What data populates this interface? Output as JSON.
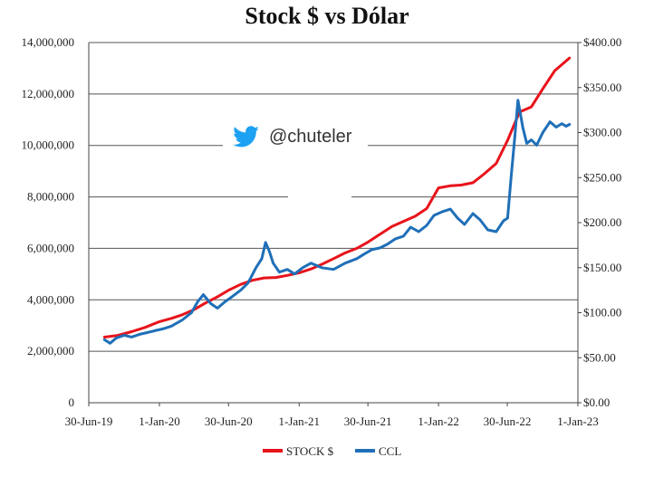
{
  "watermark": {
    "icon": "twitter-bird-icon",
    "handle": "@chuteler",
    "color": "#1da1f2"
  },
  "chart_data": {
    "type": "line",
    "title": "Stock $ vs Dólar",
    "xlabel": "",
    "ylabel_left": "",
    "ylabel_right": "",
    "x_range": [
      "2019-06-30",
      "2023-01-01"
    ],
    "y_left_range": [
      0,
      14000000
    ],
    "y_right_range": [
      0,
      400
    ],
    "x_ticks": [
      {
        "date": "2019-06-30",
        "label": "30-Jun-19"
      },
      {
        "date": "2020-01-01",
        "label": "1-Jan-20"
      },
      {
        "date": "2020-06-30",
        "label": "30-Jun-20"
      },
      {
        "date": "2021-01-01",
        "label": "1-Jan-21"
      },
      {
        "date": "2021-06-30",
        "label": "30-Jun-21"
      },
      {
        "date": "2022-01-01",
        "label": "1-Jan-22"
      },
      {
        "date": "2022-06-30",
        "label": "30-Jun-22"
      },
      {
        "date": "2023-01-01",
        "label": "1-Jan-23"
      }
    ],
    "y_left_ticks": [
      {
        "value": 0,
        "label": "0"
      },
      {
        "value": 2000000,
        "label": "2,000,000"
      },
      {
        "value": 4000000,
        "label": "4,000,000"
      },
      {
        "value": 6000000,
        "label": "6,000,000"
      },
      {
        "value": 8000000,
        "label": "8,000,000"
      },
      {
        "value": 10000000,
        "label": "10,000,000"
      },
      {
        "value": 12000000,
        "label": "12,000,000"
      },
      {
        "value": 14000000,
        "label": "14,000,000"
      }
    ],
    "y_right_ticks": [
      {
        "value": 0,
        "label": "$0.00"
      },
      {
        "value": 50,
        "label": "$50.00"
      },
      {
        "value": 100,
        "label": "$100.00"
      },
      {
        "value": 150,
        "label": "$150.00"
      },
      {
        "value": 200,
        "label": "$200.00"
      },
      {
        "value": 250,
        "label": "$250.00"
      },
      {
        "value": 300,
        "label": "$300.00"
      },
      {
        "value": 350,
        "label": "$350.00"
      },
      {
        "value": 400,
        "label": "$400.00"
      }
    ],
    "grid": "horizontal",
    "legend": "bottom",
    "series": [
      {
        "name": "STOCK $",
        "color": "#e8131b",
        "axis": "left",
        "points": [
          [
            "2019-08-10",
            2550000
          ],
          [
            "2019-09-15",
            2620000
          ],
          [
            "2019-10-20",
            2760000
          ],
          [
            "2019-11-25",
            2930000
          ],
          [
            "2020-01-01",
            3150000
          ],
          [
            "2020-02-01",
            3280000
          ],
          [
            "2020-03-01",
            3420000
          ],
          [
            "2020-04-01",
            3620000
          ],
          [
            "2020-05-01",
            3880000
          ],
          [
            "2020-06-01",
            4120000
          ],
          [
            "2020-07-01",
            4380000
          ],
          [
            "2020-08-01",
            4600000
          ],
          [
            "2020-09-01",
            4760000
          ],
          [
            "2020-10-01",
            4850000
          ],
          [
            "2020-11-01",
            4870000
          ],
          [
            "2020-12-01",
            4950000
          ],
          [
            "2021-01-01",
            5050000
          ],
          [
            "2021-02-01",
            5200000
          ],
          [
            "2021-03-01",
            5380000
          ],
          [
            "2021-04-01",
            5600000
          ],
          [
            "2021-05-01",
            5820000
          ],
          [
            "2021-06-01",
            6000000
          ],
          [
            "2021-07-01",
            6250000
          ],
          [
            "2021-08-01",
            6550000
          ],
          [
            "2021-09-01",
            6850000
          ],
          [
            "2021-10-01",
            7050000
          ],
          [
            "2021-11-01",
            7250000
          ],
          [
            "2021-12-01",
            7550000
          ],
          [
            "2022-01-01",
            8350000
          ],
          [
            "2022-02-01",
            8430000
          ],
          [
            "2022-03-01",
            8460000
          ],
          [
            "2022-04-01",
            8550000
          ],
          [
            "2022-05-01",
            8900000
          ],
          [
            "2022-06-01",
            9300000
          ],
          [
            "2022-07-01",
            10200000
          ],
          [
            "2022-08-01",
            11300000
          ],
          [
            "2022-09-01",
            11500000
          ],
          [
            "2022-10-01",
            12200000
          ],
          [
            "2022-11-01",
            12900000
          ],
          [
            "2022-12-10",
            13400000
          ]
        ]
      },
      {
        "name": "CCL",
        "color": "#1f6fb8",
        "axis": "right",
        "points": [
          [
            "2019-08-10",
            70
          ],
          [
            "2019-08-25",
            66
          ],
          [
            "2019-09-10",
            72
          ],
          [
            "2019-10-01",
            75
          ],
          [
            "2019-10-20",
            73
          ],
          [
            "2019-11-10",
            76
          ],
          [
            "2019-12-01",
            78
          ],
          [
            "2019-12-20",
            80
          ],
          [
            "2020-01-10",
            82
          ],
          [
            "2020-02-01",
            85
          ],
          [
            "2020-03-01",
            92
          ],
          [
            "2020-03-25",
            100
          ],
          [
            "2020-04-10",
            112
          ],
          [
            "2020-04-25",
            120
          ],
          [
            "2020-05-15",
            110
          ],
          [
            "2020-06-01",
            105
          ],
          [
            "2020-06-20",
            112
          ],
          [
            "2020-07-10",
            118
          ],
          [
            "2020-08-01",
            125
          ],
          [
            "2020-08-20",
            133
          ],
          [
            "2020-09-10",
            150
          ],
          [
            "2020-09-25",
            160
          ],
          [
            "2020-10-05",
            178
          ],
          [
            "2020-10-15",
            168
          ],
          [
            "2020-10-25",
            155
          ],
          [
            "2020-11-10",
            145
          ],
          [
            "2020-12-01",
            148
          ],
          [
            "2020-12-20",
            143
          ],
          [
            "2021-01-10",
            150
          ],
          [
            "2021-02-01",
            155
          ],
          [
            "2021-03-01",
            150
          ],
          [
            "2021-04-01",
            148
          ],
          [
            "2021-05-01",
            155
          ],
          [
            "2021-06-01",
            160
          ],
          [
            "2021-06-20",
            165
          ],
          [
            "2021-07-10",
            170
          ],
          [
            "2021-08-01",
            172
          ],
          [
            "2021-08-20",
            176
          ],
          [
            "2021-09-10",
            182
          ],
          [
            "2021-10-01",
            185
          ],
          [
            "2021-10-20",
            195
          ],
          [
            "2021-11-10",
            190
          ],
          [
            "2021-12-01",
            197
          ],
          [
            "2021-12-20",
            208
          ],
          [
            "2022-01-10",
            212
          ],
          [
            "2022-02-01",
            215
          ],
          [
            "2022-02-20",
            205
          ],
          [
            "2022-03-10",
            198
          ],
          [
            "2022-04-01",
            210
          ],
          [
            "2022-04-20",
            203
          ],
          [
            "2022-05-10",
            192
          ],
          [
            "2022-06-01",
            190
          ],
          [
            "2022-06-20",
            202
          ],
          [
            "2022-07-01",
            205
          ],
          [
            "2022-07-10",
            250
          ],
          [
            "2022-07-20",
            296
          ],
          [
            "2022-07-28",
            336
          ],
          [
            "2022-08-10",
            305
          ],
          [
            "2022-08-20",
            288
          ],
          [
            "2022-09-01",
            292
          ],
          [
            "2022-09-15",
            286
          ],
          [
            "2022-10-01",
            300
          ],
          [
            "2022-10-20",
            312
          ],
          [
            "2022-11-05",
            306
          ],
          [
            "2022-11-20",
            310
          ],
          [
            "2022-12-01",
            307
          ],
          [
            "2022-12-10",
            309
          ]
        ]
      }
    ]
  }
}
